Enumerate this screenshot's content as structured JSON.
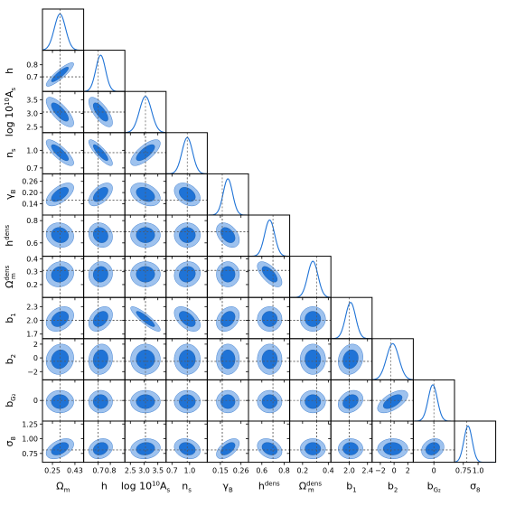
{
  "chart_data": {
    "type": "corner",
    "colors": {
      "outer": "#9ec2ee",
      "inner": "#1f73d6",
      "line": "#1f73d6",
      "truth": "#555555"
    },
    "params": [
      {
        "label": "Ω",
        "sub": "m",
        "sup": "",
        "range": [
          0.17,
          0.5
        ],
        "ticks": [
          0.25,
          0.43
        ],
        "ticklabels": [
          "0.25",
          "0.43"
        ],
        "mean": 0.31,
        "std": 0.045,
        "truth": 0.31
      },
      {
        "label": "h",
        "sub": "",
        "sup": "",
        "range": [
          0.58,
          0.92
        ],
        "ticks": [
          0.7,
          0.8
        ],
        "ticklabels": [
          "0.7",
          "0.8"
        ],
        "mean": 0.72,
        "std": 0.04,
        "truth": 0.7
      },
      {
        "label": "log 10",
        "sub": "",
        "sup": "10",
        "tail": "A",
        "tailsub": "s",
        "range": [
          2.3,
          3.8
        ],
        "ticks": [
          2.5,
          3.0,
          3.5
        ],
        "ticklabels": [
          "2.5",
          "3.0",
          "3.5"
        ],
        "mean": 3.05,
        "std": 0.22,
        "truth": 3.05
      },
      {
        "label": "n",
        "sub": "s",
        "sup": "",
        "range": [
          0.6,
          1.3
        ],
        "ticks": [
          0.7,
          1.0
        ],
        "ticklabels": [
          "0.7",
          "1.0"
        ],
        "mean": 0.96,
        "std": 0.09,
        "truth": 0.96
      },
      {
        "label": "γ",
        "sub": "B",
        "sup": "",
        "range": [
          0.08,
          0.3
        ],
        "ticks": [
          0.15,
          0.26
        ],
        "ticklabels": [
          "0.15",
          "0.26"
        ],
        "mean": 0.19,
        "std": 0.025,
        "truth": 0.16
      },
      {
        "label": "h",
        "sub": "",
        "sup": "dens",
        "range": [
          0.48,
          0.85
        ],
        "ticks": [
          0.6,
          0.8
        ],
        "ticklabels": [
          "0.6",
          "0.8"
        ],
        "mean": 0.67,
        "std": 0.045,
        "truth": 0.7
      },
      {
        "label": "Ω",
        "sub": "m",
        "sup": "dens",
        "range": [
          0.1,
          0.42
        ],
        "ticks": [
          0.2,
          0.4
        ],
        "ticklabels": [
          "0.2",
          "0.4"
        ],
        "mean": 0.28,
        "std": 0.04,
        "truth": 0.31
      },
      {
        "label": "b",
        "sub": "1",
        "sup": "",
        "range": [
          1.6,
          2.5
        ],
        "ticks": [
          2.0,
          2.4
        ],
        "ticklabels": [
          "2.0",
          "2.4"
        ],
        "mean": 2.03,
        "std": 0.11,
        "truth": 2.0
      },
      {
        "label": "b",
        "sub": "2",
        "sup": "",
        "range": [
          -3.2,
          2.8
        ],
        "ticks": [
          -2,
          0,
          2
        ],
        "ticklabels": [
          "−2",
          "0",
          "2"
        ],
        "mean": -0.2,
        "std": 0.9,
        "truth": -0.5
      },
      {
        "label": "b",
        "sub": "G₂",
        "sup": "",
        "range": [
          -1.8,
          1.8
        ],
        "ticks": [
          0
        ],
        "ticklabels": [
          "0"
        ],
        "mean": -0.1,
        "std": 0.4,
        "truth": 0.0
      },
      {
        "label": "σ",
        "sub": "8",
        "sup": "",
        "range": [
          0.6,
          1.3
        ],
        "ticks": [
          0.75,
          1.0
        ],
        "ticklabels": [
          "0.75",
          "1.0"
        ],
        "mean": 0.83,
        "std": 0.07,
        "truth": 0.81
      }
    ],
    "yticks": {
      "1": {
        "ticks": [
          0.7,
          0.8
        ],
        "ticklabels": [
          "0.7",
          "0.8"
        ]
      },
      "2": {
        "ticks": [
          2.5,
          3.0,
          3.5
        ],
        "ticklabels": [
          "2.5",
          "3.0",
          "3.5"
        ]
      },
      "3": {
        "ticks": [
          0.7,
          1.0
        ],
        "ticklabels": [
          "0.7",
          "1.0"
        ]
      },
      "4": {
        "ticks": [
          0.14,
          0.2,
          0.26
        ],
        "ticklabels": [
          "0.14",
          "0.20",
          "0.26"
        ]
      },
      "5": {
        "ticks": [
          0.6,
          0.8
        ],
        "ticklabels": [
          "0.6",
          "0.8"
        ]
      },
      "6": {
        "ticks": [
          0.2,
          0.3,
          0.4
        ],
        "ticklabels": [
          "0.2",
          "0.3",
          "0.4"
        ]
      },
      "7": {
        "ticks": [
          1.7,
          2.0,
          2.3
        ],
        "ticklabels": [
          "1.7",
          "2.0",
          "2.3"
        ]
      },
      "8": {
        "ticks": [
          -2,
          0,
          2
        ],
        "ticklabels": [
          "−2",
          "0",
          "2"
        ]
      },
      "9": {
        "ticks": [
          0
        ],
        "ticklabels": [
          "0"
        ]
      },
      "10": {
        "ticks": [
          0.75,
          1.0,
          1.25
        ],
        "ticklabels": [
          "0.75",
          "1.00",
          "1.25"
        ]
      }
    },
    "correlations": {
      "1-0": 0.88,
      "2-0": -0.75,
      "2-1": -0.72,
      "3-0": -0.8,
      "3-1": -0.85,
      "3-2": 0.72,
      "4-0": 0.6,
      "4-1": 0.55,
      "4-2": -0.35,
      "4-3": -0.35,
      "5-0": -0.1,
      "5-1": -0.15,
      "5-2": 0.0,
      "5-3": 0.0,
      "5-4": -0.4,
      "6-0": 0.1,
      "6-1": 0.05,
      "6-2": 0.0,
      "6-3": 0.1,
      "6-4": 0.0,
      "6-5": -0.65,
      "7-0": 0.3,
      "7-1": 0.35,
      "7-2": -0.88,
      "7-3": -0.5,
      "7-4": 0.3,
      "7-5": 0.0,
      "7-6": 0.0,
      "8-0": 0.1,
      "8-1": 0.1,
      "8-2": 0.0,
      "8-3": 0.0,
      "8-4": 0.0,
      "8-5": 0.0,
      "8-6": 0.0,
      "8-7": 0.15,
      "9-0": 0.0,
      "9-1": 0.0,
      "9-2": 0.0,
      "9-3": 0.0,
      "9-4": 0.0,
      "9-5": 0.0,
      "9-6": 0.0,
      "9-7": 0.25,
      "9-8": 0.6,
      "10-0": 0.45,
      "10-1": 0.2,
      "10-2": 0.1,
      "10-3": -0.2,
      "10-4": 0.55,
      "10-5": -0.3,
      "10-6": 0.0,
      "10-7": 0.0,
      "10-8": 0.0,
      "10-9": 0.2
    }
  }
}
